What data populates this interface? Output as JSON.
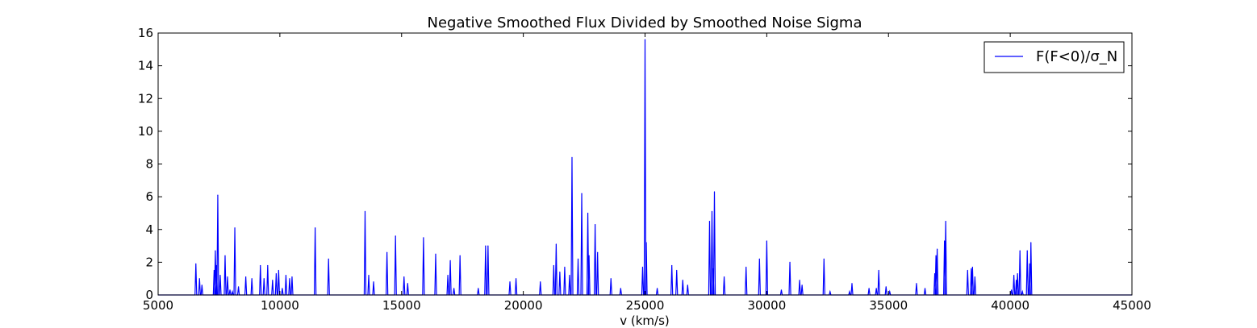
{
  "chart_data": {
    "type": "line",
    "title": "Negative Smoothed Flux Divided by Smoothed Noise Sigma",
    "xlabel": "v (km/s)",
    "ylabel": "",
    "xlim": [
      5000,
      45000
    ],
    "ylim": [
      0,
      16
    ],
    "xticks": [
      "5000",
      "10000",
      "15000",
      "20000",
      "25000",
      "30000",
      "35000",
      "40000",
      "45000"
    ],
    "yticks": [
      "0",
      "2",
      "4",
      "6",
      "8",
      "10",
      "12",
      "14",
      "16"
    ],
    "grid": false,
    "legend_position": "top-right",
    "series": [
      {
        "name": "F(F<0)/σ_N",
        "color": "#0000ff",
        "peaks": [
          [
            6550,
            1.9
          ],
          [
            6700,
            1.0
          ],
          [
            6800,
            0.6
          ],
          [
            7300,
            1.5
          ],
          [
            7350,
            2.7
          ],
          [
            7400,
            1.8
          ],
          [
            7450,
            6.1
          ],
          [
            7550,
            1.2
          ],
          [
            7750,
            2.4
          ],
          [
            7850,
            1.1
          ],
          [
            7950,
            0.3
          ],
          [
            8050,
            0.2
          ],
          [
            8150,
            4.1
          ],
          [
            8300,
            0.5
          ],
          [
            8600,
            1.1
          ],
          [
            8850,
            1.0
          ],
          [
            9200,
            1.8
          ],
          [
            9350,
            1.0
          ],
          [
            9500,
            1.8
          ],
          [
            9700,
            0.9
          ],
          [
            9850,
            1.3
          ],
          [
            9950,
            1.5
          ],
          [
            10100,
            0.4
          ],
          [
            10250,
            1.2
          ],
          [
            10400,
            1.0
          ],
          [
            10500,
            1.1
          ],
          [
            11450,
            4.1
          ],
          [
            12000,
            2.2
          ],
          [
            13500,
            5.1
          ],
          [
            13650,
            1.2
          ],
          [
            13850,
            0.8
          ],
          [
            14400,
            2.6
          ],
          [
            14750,
            3.6
          ],
          [
            15100,
            1.1
          ],
          [
            15250,
            0.7
          ],
          [
            15900,
            3.5
          ],
          [
            16400,
            2.5
          ],
          [
            16900,
            1.2
          ],
          [
            17000,
            2.1
          ],
          [
            17150,
            0.4
          ],
          [
            17400,
            2.4
          ],
          [
            18150,
            0.4
          ],
          [
            18450,
            3.0
          ],
          [
            18550,
            3.0
          ],
          [
            19450,
            0.8
          ],
          [
            19700,
            1.0
          ],
          [
            20700,
            0.8
          ],
          [
            21250,
            1.8
          ],
          [
            21350,
            3.1
          ],
          [
            21500,
            1.4
          ],
          [
            21700,
            1.7
          ],
          [
            21900,
            1.2
          ],
          [
            22000,
            8.4
          ],
          [
            22250,
            2.2
          ],
          [
            22400,
            6.2
          ],
          [
            22650,
            5.0
          ],
          [
            22700,
            2.4
          ],
          [
            22950,
            4.3
          ],
          [
            23050,
            2.6
          ],
          [
            23600,
            1.0
          ],
          [
            24000,
            0.4
          ],
          [
            24900,
            1.7
          ],
          [
            25000,
            15.6
          ],
          [
            25050,
            3.2
          ],
          [
            25500,
            0.4
          ],
          [
            26100,
            1.8
          ],
          [
            26300,
            1.5
          ],
          [
            26550,
            0.9
          ],
          [
            26750,
            0.6
          ],
          [
            27650,
            4.5
          ],
          [
            27750,
            5.1
          ],
          [
            27850,
            6.3
          ],
          [
            27800,
            1.6
          ],
          [
            28250,
            1.1
          ],
          [
            29150,
            1.7
          ],
          [
            29700,
            2.2
          ],
          [
            30000,
            3.3
          ],
          [
            30600,
            0.3
          ],
          [
            30950,
            2.0
          ],
          [
            31350,
            0.9
          ],
          [
            31450,
            0.6
          ],
          [
            32350,
            2.2
          ],
          [
            32600,
            0.2
          ],
          [
            33400,
            0.2
          ],
          [
            33500,
            0.7
          ],
          [
            34200,
            0.4
          ],
          [
            34500,
            0.4
          ],
          [
            34600,
            1.5
          ],
          [
            34900,
            0.5
          ],
          [
            35050,
            0.2
          ],
          [
            36150,
            0.7
          ],
          [
            36500,
            0.4
          ],
          [
            36900,
            1.3
          ],
          [
            36950,
            2.4
          ],
          [
            37000,
            2.8
          ],
          [
            37300,
            3.3
          ],
          [
            37350,
            4.5
          ],
          [
            38250,
            1.5
          ],
          [
            38400,
            1.6
          ],
          [
            38450,
            1.7
          ],
          [
            38550,
            1.1
          ],
          [
            40050,
            0.3
          ],
          [
            40150,
            1.2
          ],
          [
            40250,
            0.9
          ],
          [
            40300,
            1.3
          ],
          [
            40400,
            2.7
          ],
          [
            40500,
            0.2
          ],
          [
            40700,
            2.7
          ],
          [
            40800,
            1.9
          ],
          [
            40850,
            3.2
          ]
        ]
      }
    ]
  }
}
